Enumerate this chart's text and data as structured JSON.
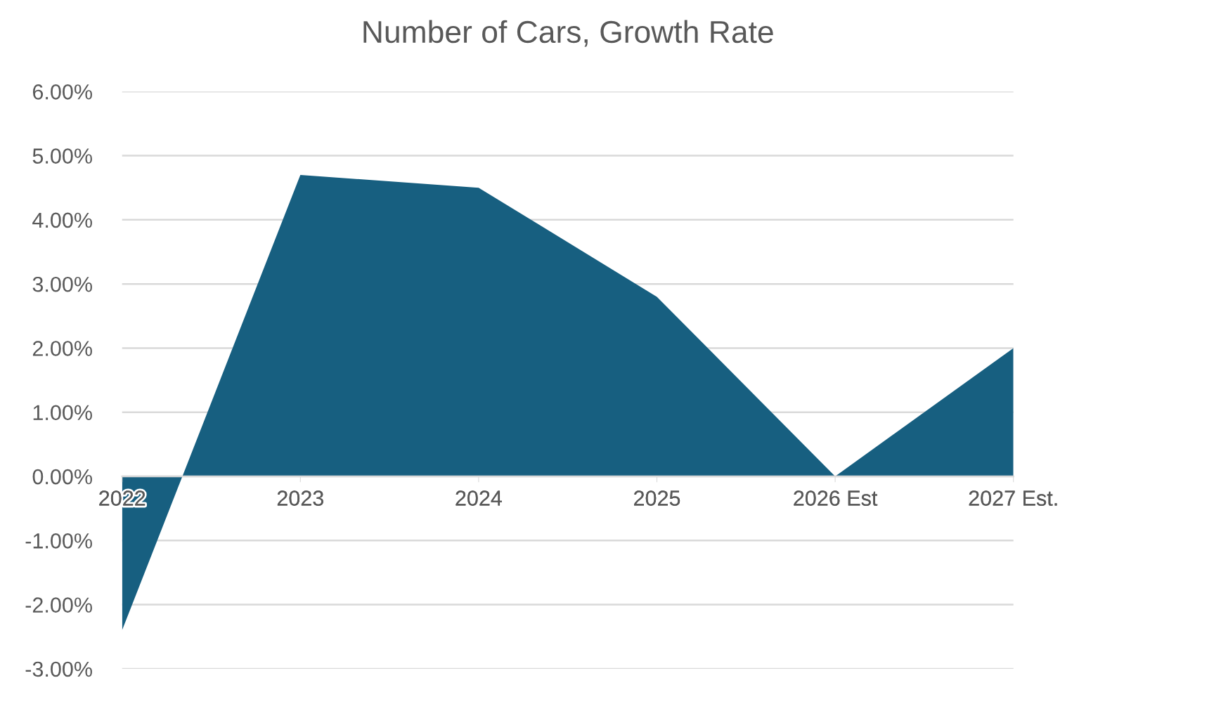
{
  "chart_data": {
    "type": "area",
    "title": "Number of Cars, Growth Rate",
    "categories": [
      "2022",
      "2023",
      "2024",
      "2025",
      "2026 Est",
      "2027 Est."
    ],
    "series": [
      {
        "color": "#175f80",
        "values": [
          -2.4,
          4.7,
          4.5,
          2.8,
          0,
          2.0
        ]
      }
    ],
    "ylim": [
      -3,
      6
    ],
    "yticks": [
      {
        "value": -3,
        "label": "-3.00%"
      },
      {
        "value": -2,
        "label": "-2.00%"
      },
      {
        "value": -1,
        "label": "-1.00%"
      },
      {
        "value": 0,
        "label": "0.00%"
      },
      {
        "value": 1,
        "label": "1.00%"
      },
      {
        "value": 2,
        "label": "2.00%"
      },
      {
        "value": 3,
        "label": "3.00%"
      },
      {
        "value": 4,
        "label": "4.00%"
      },
      {
        "value": 5,
        "label": "5.00%"
      },
      {
        "value": 6,
        "label": "6.00%"
      }
    ],
    "grid": "y"
  }
}
